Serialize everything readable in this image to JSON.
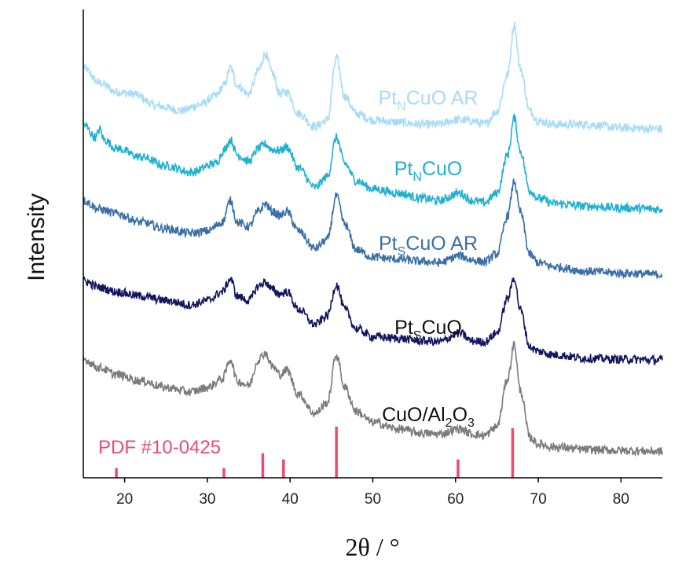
{
  "chart_data": {
    "type": "line",
    "xlabel": "2θ / °",
    "ylabel": "Intensity",
    "xlim": [
      15,
      85
    ],
    "x_ticks": [
      20,
      30,
      40,
      50,
      60,
      70,
      80
    ],
    "x_tick_labels": [
      "20",
      "30",
      "40",
      "50",
      "60",
      "70",
      "80"
    ],
    "y_ticks_shown": false,
    "series": [
      {
        "name": "PtNCuO AR",
        "label_main": "Pt",
        "label_sub": "N",
        "label_rest": "CuO AR",
        "color": "#a7dcf7",
        "x": [
          15,
          17,
          19,
          21,
          24,
          27,
          29,
          31,
          32,
          32.8,
          33.6,
          35,
          36.2,
          37,
          37.8,
          38.8,
          39.6,
          41,
          43,
          44.5,
          45.6,
          46.6,
          48,
          50,
          53,
          56,
          58,
          60,
          62,
          63.5,
          65,
          66.3,
          67.1,
          67.8,
          69,
          70,
          72,
          76,
          80,
          85
        ],
        "y": [
          4.6,
          4.25,
          4.05,
          4.0,
          3.72,
          3.62,
          3.75,
          3.95,
          4.2,
          4.6,
          4.2,
          4.0,
          4.55,
          4.92,
          4.5,
          4.0,
          4.05,
          3.55,
          3.25,
          3.4,
          4.82,
          3.95,
          3.55,
          3.4,
          3.35,
          3.3,
          3.3,
          3.4,
          3.38,
          3.3,
          3.6,
          4.45,
          5.6,
          4.6,
          3.6,
          3.38,
          3.3,
          3.3,
          3.22,
          3.2
        ]
      },
      {
        "name": "PtNCuO",
        "label_main": "Pt",
        "label_sub": "N",
        "label_rest": "CuO",
        "color": "#1eb1d1",
        "x": [
          15,
          16.5,
          17,
          17.5,
          19,
          22,
          25,
          28,
          31,
          32,
          32.8,
          33.6,
          35,
          36.2,
          37,
          37.8,
          38.8,
          39.6,
          41,
          43,
          44.5,
          45.6,
          46.6,
          48,
          50,
          53,
          56,
          58,
          60.5,
          62,
          63.5,
          65,
          66.3,
          67.1,
          67.8,
          69,
          70,
          72,
          76,
          80,
          85
        ],
        "y": [
          3.3,
          3.0,
          3.2,
          2.95,
          2.75,
          2.55,
          2.35,
          2.2,
          2.4,
          2.7,
          2.95,
          2.6,
          2.45,
          2.75,
          2.85,
          2.72,
          2.7,
          2.78,
          2.3,
          1.85,
          2.1,
          3.0,
          2.4,
          2.0,
          1.82,
          1.72,
          1.6,
          1.55,
          1.72,
          1.55,
          1.5,
          1.72,
          2.6,
          3.45,
          2.7,
          1.78,
          1.6,
          1.48,
          1.42,
          1.38,
          1.35
        ]
      },
      {
        "name": "PtSCuO AR",
        "label_main": "Pt",
        "label_sub": "S",
        "label_rest": "CuO AR",
        "color": "#3a6fa6",
        "x": [
          15,
          17,
          19,
          22,
          25,
          28,
          30,
          31.8,
          32.8,
          33.6,
          35,
          36.2,
          37,
          37.8,
          38.8,
          39.6,
          41,
          43,
          44.5,
          45.6,
          46.6,
          48,
          50,
          53,
          56,
          58,
          60.5,
          62,
          63.5,
          65,
          66.3,
          67.1,
          67.8,
          69,
          70,
          72,
          76,
          80,
          85
        ],
        "y": [
          1.55,
          1.35,
          1.25,
          1.05,
          0.9,
          0.8,
          0.85,
          1.05,
          1.55,
          1.05,
          0.95,
          1.3,
          1.48,
          1.3,
          1.2,
          1.3,
          0.85,
          0.45,
          0.65,
          1.65,
          1.0,
          0.42,
          0.25,
          0.2,
          0.15,
          0.12,
          0.28,
          0.18,
          0.14,
          0.32,
          1.2,
          2.0,
          1.3,
          0.3,
          0.12,
          0.02,
          -0.08,
          -0.12,
          -0.15
        ]
      },
      {
        "name": "PtSCuO",
        "label_main": "Pt",
        "label_sub": "S",
        "label_rest": "CuO",
        "color": "#13155e",
        "x": [
          15,
          17,
          19,
          22,
          25,
          28,
          30,
          31.8,
          32.8,
          33.6,
          35,
          36.2,
          37,
          37.8,
          38.8,
          39.6,
          41,
          43,
          44.5,
          45.6,
          46.6,
          48,
          50,
          53,
          56,
          58,
          60.5,
          62,
          63.5,
          65,
          66.3,
          67.1,
          67.8,
          69,
          70,
          72,
          76,
          80,
          85
        ],
        "y": [
          -0.3,
          -0.45,
          -0.55,
          -0.65,
          -0.75,
          -0.85,
          -0.75,
          -0.55,
          -0.25,
          -0.65,
          -0.75,
          -0.42,
          -0.32,
          -0.5,
          -0.6,
          -0.55,
          -0.95,
          -1.3,
          -1.1,
          -0.38,
          -0.95,
          -1.4,
          -1.58,
          -1.62,
          -1.68,
          -1.7,
          -1.5,
          -1.68,
          -1.7,
          -1.5,
          -0.7,
          -0.22,
          -0.95,
          -1.82,
          -1.92,
          -2.0,
          -2.08,
          -2.1,
          -2.12
        ]
      },
      {
        "name": "CuO/Al2O3",
        "label_main": "CuO/Al",
        "label_sub": "2",
        "label_rest": "O",
        "label_sub2": "3",
        "color": "#7b7b7b",
        "x": [
          15,
          17,
          19,
          22,
          25,
          28,
          30,
          31.8,
          32.8,
          33.6,
          35,
          36.2,
          37,
          37.8,
          38.8,
          39.6,
          41,
          43,
          44.5,
          45.6,
          46.6,
          48,
          50,
          53,
          56,
          58,
          60.5,
          62,
          63.5,
          65,
          66.3,
          67.1,
          67.8,
          69,
          70,
          72,
          76,
          80,
          85
        ],
        "y": [
          -2.1,
          -2.3,
          -2.45,
          -2.6,
          -2.75,
          -2.85,
          -2.75,
          -2.55,
          -2.1,
          -2.6,
          -2.7,
          -2.1,
          -1.95,
          -2.25,
          -2.45,
          -2.35,
          -2.9,
          -3.35,
          -3.1,
          -2.0,
          -2.75,
          -3.3,
          -3.55,
          -3.7,
          -3.8,
          -3.82,
          -3.7,
          -3.82,
          -3.85,
          -3.65,
          -2.55,
          -1.75,
          -2.8,
          -3.9,
          -4.05,
          -4.12,
          -4.18,
          -4.2,
          -4.22
        ]
      }
    ],
    "reference": {
      "label": "PDF #10-0425",
      "color": "#ee4b6e",
      "peaks": [
        {
          "x": 19.0,
          "rel": 0.19
        },
        {
          "x": 32.0,
          "rel": 0.19
        },
        {
          "x": 36.7,
          "rel": 0.48
        },
        {
          "x": 39.2,
          "rel": 0.36
        },
        {
          "x": 45.6,
          "rel": 1.0
        },
        {
          "x": 60.3,
          "rel": 0.36
        },
        {
          "x": 66.9,
          "rel": 0.97
        }
      ]
    }
  }
}
